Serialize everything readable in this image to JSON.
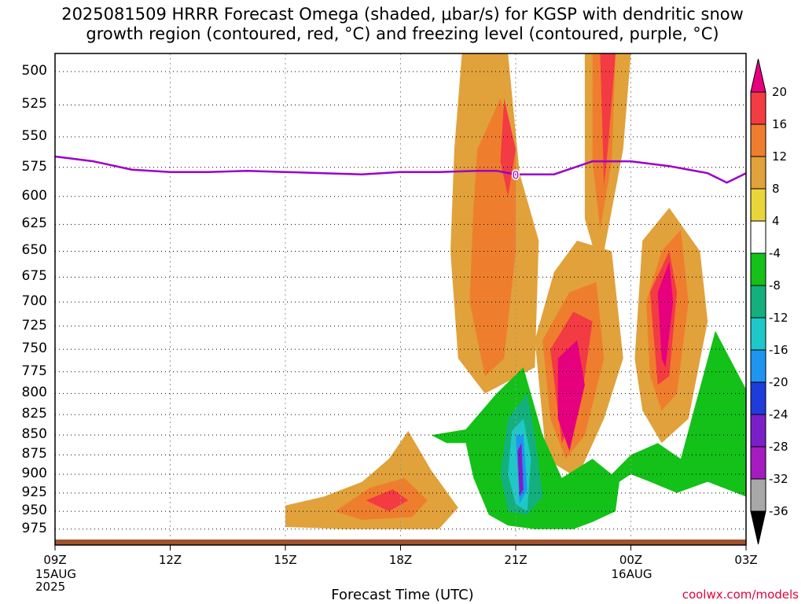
{
  "title_lines": [
    "2025081509 HRRR Forecast Omega (shaded, μbar/s) for KGSP with dendritic snow",
    "growth region (contoured, red, °C) and freezing level (contoured, purple, °C)"
  ],
  "credit": "coolwx.com/models",
  "chart_data": {
    "type": "heatmap",
    "title": "2025081509 HRRR Forecast Omega (shaded, μbar/s) for KGSP with dendritic snow growth region (contoured, red, °C) and freezing level (contoured, purple, °C)",
    "xlabel": "Forecast Time (UTC)",
    "ylabel": "",
    "x_ticks": [
      "09Z",
      "12Z",
      "15Z",
      "18Z",
      "21Z",
      "00Z",
      "03Z"
    ],
    "x_tick_hours": [
      0,
      3,
      6,
      9,
      12,
      15,
      18
    ],
    "x_sub_labels": [
      {
        "hour": 0,
        "lines": [
          "15AUG",
          "2025"
        ]
      },
      {
        "hour": 15,
        "lines": [
          "16AUG"
        ]
      }
    ],
    "x_range_hours": [
      0,
      18
    ],
    "y_ticks": [
      "500",
      "525",
      "550",
      "575",
      "600",
      "625",
      "650",
      "675",
      "700",
      "725",
      "750",
      "775",
      "800",
      "825",
      "850",
      "875",
      "900",
      "925",
      "950",
      "975"
    ],
    "y_range_mb": [
      487,
      990
    ],
    "y_axis": "log-pressure",
    "grid": true,
    "colorbar": {
      "ticks": [
        "20",
        "16",
        "12",
        "8",
        "4",
        "-4",
        "-8",
        "-12",
        "-16",
        "-20",
        "-24",
        "-28",
        "-32",
        "-36"
      ],
      "colors": [
        "#e6007e",
        "#f33b43",
        "#ee7e2d",
        "#e1a13b",
        "#ead63a",
        "#ffffff",
        "#13c118",
        "#13b07e",
        "#1ec8c8",
        "#1e96f0",
        "#1e3cdc",
        "#7a1fc8",
        "#a51bc0",
        "#a8a8a8",
        "#000000"
      ]
    },
    "freezing_level": {
      "hours": [
        0,
        1,
        2,
        3,
        4,
        5,
        6,
        7,
        8,
        9,
        10,
        11,
        11.5,
        12,
        13,
        14,
        15,
        16,
        17,
        17.5,
        18
      ],
      "pressure_mb": [
        566,
        570,
        577,
        579,
        579,
        578,
        579,
        580,
        581,
        579,
        579,
        578,
        578,
        581,
        581,
        570,
        570,
        574,
        580,
        588,
        580
      ],
      "label": "0",
      "color": "#9b00c8"
    },
    "omega_regions": [
      {
        "value": 8,
        "points": [
          [
            6,
            942
          ],
          [
            7,
            930
          ],
          [
            8,
            910
          ],
          [
            8.7,
            880
          ],
          [
            9.2,
            845
          ],
          [
            9.8,
            895
          ],
          [
            10.5,
            945
          ],
          [
            10,
            975
          ],
          [
            7.5,
            975
          ],
          [
            6,
            972
          ]
        ]
      },
      {
        "value": 12,
        "points": [
          [
            7.3,
            950
          ],
          [
            8.2,
            918
          ],
          [
            9.1,
            905
          ],
          [
            9.7,
            935
          ],
          [
            9.3,
            958
          ],
          [
            8,
            962
          ]
        ]
      },
      {
        "value": 16,
        "points": [
          [
            8.1,
            935
          ],
          [
            8.8,
            920
          ],
          [
            9.2,
            935
          ],
          [
            8.7,
            950
          ]
        ]
      },
      {
        "value": 8,
        "points": [
          [
            10.6,
            487
          ],
          [
            11.8,
            487
          ],
          [
            12.1,
            580
          ],
          [
            12.6,
            640
          ],
          [
            12.5,
            770
          ],
          [
            11.2,
            800
          ],
          [
            10.5,
            760
          ],
          [
            10.3,
            650
          ],
          [
            10.4,
            560
          ]
        ]
      },
      {
        "value": 12,
        "points": [
          [
            11,
            560
          ],
          [
            11.6,
            520
          ],
          [
            12,
            560
          ],
          [
            12,
            650
          ],
          [
            11.7,
            760
          ],
          [
            11.2,
            780
          ],
          [
            10.8,
            700
          ],
          [
            10.9,
            610
          ]
        ]
      },
      {
        "value": 16,
        "points": [
          [
            11.7,
            520
          ],
          [
            12,
            560
          ],
          [
            11.8,
            600
          ],
          [
            11.6,
            570
          ]
        ]
      },
      {
        "value": 8,
        "points": [
          [
            12.5,
            740
          ],
          [
            13,
            670
          ],
          [
            13.6,
            640
          ],
          [
            14.5,
            650
          ],
          [
            14.8,
            760
          ],
          [
            14.3,
            830
          ],
          [
            13.6,
            905
          ],
          [
            12.8,
            880
          ]
        ]
      },
      {
        "value": 12,
        "points": [
          [
            12.7,
            740
          ],
          [
            13.4,
            690
          ],
          [
            14.1,
            680
          ],
          [
            14.3,
            760
          ],
          [
            13.8,
            850
          ],
          [
            13.3,
            880
          ],
          [
            12.9,
            830
          ]
        ]
      },
      {
        "value": 16,
        "points": [
          [
            12.9,
            750
          ],
          [
            13.5,
            710
          ],
          [
            14,
            720
          ],
          [
            13.7,
            810
          ],
          [
            13.2,
            860
          ]
        ]
      },
      {
        "value": 20,
        "points": [
          [
            13.1,
            760
          ],
          [
            13.6,
            740
          ],
          [
            13.8,
            790
          ],
          [
            13.4,
            870
          ],
          [
            13.1,
            830
          ]
        ]
      },
      {
        "value": 8,
        "points": [
          [
            13.8,
            487
          ],
          [
            15,
            487
          ],
          [
            14.8,
            560
          ],
          [
            14.2,
            670
          ],
          [
            13.8,
            620
          ]
        ]
      },
      {
        "value": 12,
        "points": [
          [
            14,
            487
          ],
          [
            14.6,
            487
          ],
          [
            14.5,
            570
          ],
          [
            14.2,
            630
          ],
          [
            14,
            570
          ]
        ]
      },
      {
        "value": 16,
        "points": [
          [
            14.2,
            487
          ],
          [
            14.6,
            487
          ],
          [
            14.4,
            560
          ],
          [
            14.3,
            590
          ]
        ]
      },
      {
        "value": 8,
        "points": [
          [
            15.1,
            760
          ],
          [
            15.3,
            640
          ],
          [
            16,
            610
          ],
          [
            16.8,
            650
          ],
          [
            17,
            720
          ],
          [
            16.5,
            830
          ],
          [
            15.8,
            860
          ],
          [
            15.3,
            820
          ]
        ]
      },
      {
        "value": 12,
        "points": [
          [
            15.4,
            700
          ],
          [
            15.8,
            650
          ],
          [
            16.3,
            630
          ],
          [
            16.5,
            700
          ],
          [
            16.2,
            800
          ],
          [
            15.8,
            820
          ],
          [
            15.5,
            780
          ]
        ]
      },
      {
        "value": 16,
        "points": [
          [
            15.5,
            690
          ],
          [
            16,
            650
          ],
          [
            16.2,
            690
          ],
          [
            16,
            780
          ],
          [
            15.7,
            790
          ]
        ]
      },
      {
        "value": 20,
        "points": [
          [
            15.7,
            690
          ],
          [
            16,
            660
          ],
          [
            16.1,
            700
          ],
          [
            15.9,
            770
          ],
          [
            15.8,
            760
          ]
        ]
      },
      {
        "value": -4,
        "points": [
          [
            9.8,
            850
          ],
          [
            10.7,
            843
          ],
          [
            11.5,
            800
          ],
          [
            12.2,
            770
          ],
          [
            12.7,
            850
          ],
          [
            13.2,
            905
          ],
          [
            14,
            880
          ],
          [
            14.5,
            900
          ],
          [
            15,
            875
          ],
          [
            15.7,
            860
          ],
          [
            16.3,
            880
          ],
          [
            17.2,
            730
          ],
          [
            18,
            795
          ],
          [
            18,
            930
          ],
          [
            17,
            910
          ],
          [
            16.2,
            925
          ],
          [
            15.5,
            910
          ],
          [
            15,
            900
          ],
          [
            14.7,
            910
          ],
          [
            14.6,
            950
          ],
          [
            14,
            965
          ],
          [
            13.5,
            975
          ],
          [
            12.5,
            975
          ],
          [
            11.8,
            970
          ],
          [
            11.3,
            955
          ],
          [
            10.9,
            905
          ],
          [
            10.7,
            860
          ],
          [
            10.2,
            860
          ]
        ]
      },
      {
        "value": -8,
        "points": [
          [
            11.8,
            830
          ],
          [
            12.3,
            800
          ],
          [
            12.5,
            850
          ],
          [
            12.7,
            930
          ],
          [
            12.3,
            955
          ],
          [
            11.8,
            950
          ],
          [
            11.6,
            900
          ]
        ]
      },
      {
        "value": -12,
        "points": [
          [
            11.9,
            845
          ],
          [
            12.2,
            830
          ],
          [
            12.4,
            880
          ],
          [
            12.3,
            950
          ],
          [
            12,
            940
          ],
          [
            11.8,
            900
          ]
        ]
      },
      {
        "value": -16,
        "points": [
          [
            12,
            850
          ],
          [
            12.2,
            850
          ],
          [
            12.3,
            920
          ],
          [
            12.1,
            940
          ]
        ]
      },
      {
        "value": -24,
        "points": [
          [
            12.05,
            870
          ],
          [
            12.15,
            860
          ],
          [
            12.2,
            920
          ],
          [
            12.1,
            930
          ]
        ]
      }
    ]
  }
}
